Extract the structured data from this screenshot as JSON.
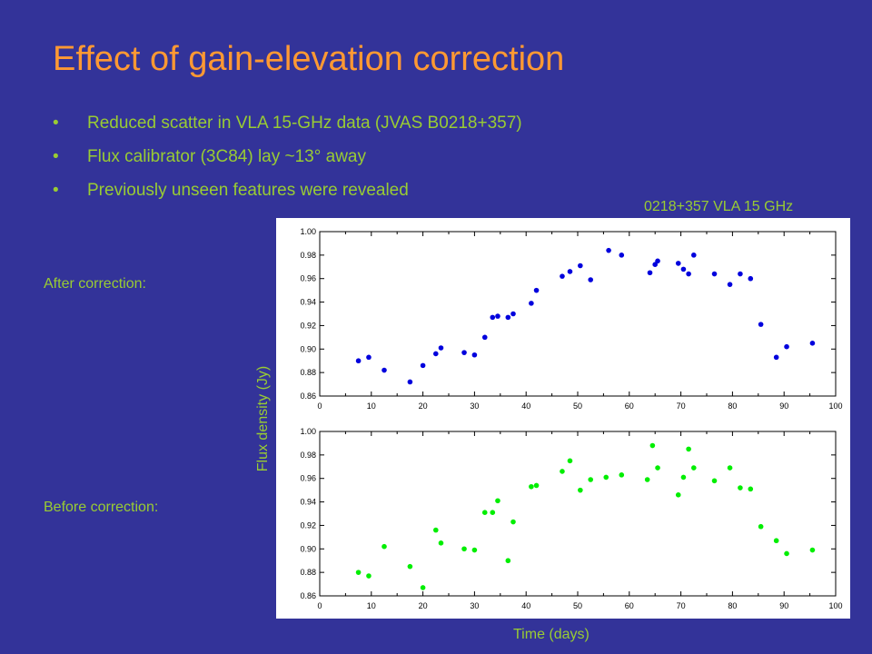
{
  "slide": {
    "title": "Effect of gain-elevation correction",
    "bullets": [
      "Reduced scatter in VLA 15-GHz data (JVAS B0218+357)",
      "Flux calibrator (3C84) lay ~13° away",
      "Previously unseen features were revealed"
    ],
    "bullet_symbol": "•",
    "after_label": "After correction:",
    "before_label": "Before correction:"
  },
  "colors": {
    "background": "#333399",
    "title": "#ff9933",
    "text": "#99cc33",
    "after_points": "#0000dd",
    "before_points": "#00ee00"
  },
  "chart_data": [
    {
      "type": "scatter",
      "title": "0218+357  VLA 15 GHz",
      "xlabel": "Time (days)",
      "ylabel": "Flux density (Jy)",
      "xlim": [
        0,
        100
      ],
      "ylim": [
        0.86,
        1.0
      ],
      "xticks": [
        "0",
        "10",
        "20",
        "30",
        "40",
        "50",
        "60",
        "70",
        "80",
        "90",
        "100"
      ],
      "yticks": [
        "0.86",
        "0.88",
        "0.90",
        "0.92",
        "0.94",
        "0.96",
        "0.98",
        "1.00"
      ],
      "series": [
        {
          "x": [
            7.5,
            9.5,
            12.5,
            17.5,
            20,
            22.5,
            23.5,
            28,
            30,
            32,
            33.5,
            34.5,
            36.5,
            37.5,
            41,
            42,
            47,
            48.5,
            50.5,
            52.5,
            56,
            58.5,
            64,
            65,
            65.5,
            69.5,
            70.5,
            71.5,
            72.5,
            76.5,
            79.5,
            81.5,
            83.5,
            85.5,
            88.5,
            90.5,
            95.5
          ],
          "y": [
            0.89,
            0.893,
            0.882,
            0.872,
            0.886,
            0.896,
            0.901,
            0.897,
            0.895,
            0.91,
            0.927,
            0.928,
            0.927,
            0.93,
            0.939,
            0.95,
            0.962,
            0.966,
            0.971,
            0.959,
            0.984,
            0.98,
            0.965,
            0.972,
            0.975,
            0.973,
            0.968,
            0.964,
            0.98,
            0.964,
            0.955,
            0.964,
            0.96,
            0.921,
            0.893,
            0.902,
            0.905
          ]
        }
      ]
    },
    {
      "type": "scatter",
      "xlim": [
        0,
        100
      ],
      "ylim": [
        0.86,
        1.0
      ],
      "xticks": [
        "0",
        "10",
        "20",
        "30",
        "40",
        "50",
        "60",
        "70",
        "80",
        "90",
        "100"
      ],
      "yticks": [
        "0.86",
        "0.88",
        "0.90",
        "0.92",
        "0.94",
        "0.96",
        "0.98",
        "1.00"
      ],
      "series": [
        {
          "x": [
            7.5,
            9.5,
            12.5,
            17.5,
            20,
            22.5,
            23.5,
            28,
            30,
            32,
            33.5,
            34.5,
            36.5,
            37.5,
            41,
            42,
            47,
            48.5,
            50.5,
            52.5,
            55.5,
            58.5,
            63.5,
            64.5,
            65.5,
            69.5,
            70.5,
            71.5,
            72.5,
            76.5,
            79.5,
            81.5,
            83.5,
            85.5,
            88.5,
            90.5,
            95.5
          ],
          "y": [
            0.88,
            0.877,
            0.902,
            0.885,
            0.867,
            0.916,
            0.905,
            0.9,
            0.899,
            0.931,
            0.931,
            0.941,
            0.89,
            0.923,
            0.953,
            0.954,
            0.966,
            0.975,
            0.95,
            0.959,
            0.961,
            0.963,
            0.959,
            0.988,
            0.969,
            0.946,
            0.961,
            0.985,
            0.969,
            0.958,
            0.969,
            0.952,
            0.951,
            0.919,
            0.907,
            0.896,
            0.899
          ]
        }
      ]
    }
  ]
}
